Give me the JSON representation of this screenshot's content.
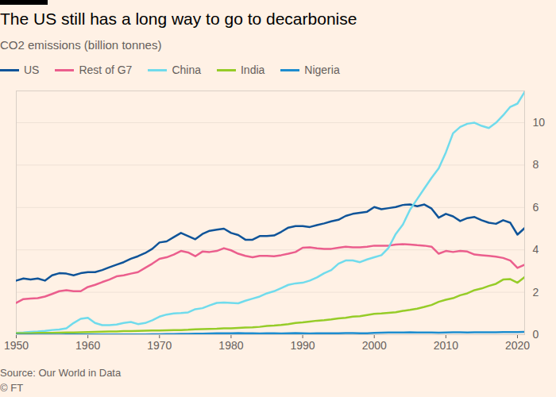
{
  "chart_data": {
    "type": "line",
    "title": "The US still has a long way to go to decarbonise",
    "subtitle": "CO2 emissions (billion tonnes)",
    "annotations": [
      "Source: Our World in Data",
      "© FT"
    ],
    "legend": "top",
    "grid": true,
    "x": [
      1950,
      1951,
      1952,
      1953,
      1954,
      1955,
      1956,
      1957,
      1958,
      1959,
      1960,
      1961,
      1962,
      1963,
      1964,
      1965,
      1966,
      1967,
      1968,
      1969,
      1970,
      1971,
      1972,
      1973,
      1974,
      1975,
      1976,
      1977,
      1978,
      1979,
      1980,
      1981,
      1982,
      1983,
      1984,
      1985,
      1986,
      1987,
      1988,
      1989,
      1990,
      1991,
      1992,
      1993,
      1994,
      1995,
      1996,
      1997,
      1998,
      1999,
      2000,
      2001,
      2002,
      2003,
      2004,
      2005,
      2006,
      2007,
      2008,
      2009,
      2010,
      2011,
      2012,
      2013,
      2014,
      2015,
      2016,
      2017,
      2018,
      2019,
      2020,
      2021
    ],
    "xlim": [
      1950,
      2021
    ],
    "xticks": [
      1950,
      1960,
      1970,
      1980,
      1990,
      2000,
      2010,
      2020
    ],
    "ylim": [
      0,
      11.5
    ],
    "yticks": [
      0,
      2,
      4,
      6,
      8,
      10
    ],
    "series": [
      {
        "name": "US",
        "color": "#0f5499",
        "values": [
          2.55,
          2.65,
          2.6,
          2.65,
          2.55,
          2.8,
          2.9,
          2.88,
          2.8,
          2.9,
          2.95,
          2.95,
          3.05,
          3.18,
          3.3,
          3.42,
          3.58,
          3.7,
          3.85,
          4.05,
          4.35,
          4.4,
          4.6,
          4.8,
          4.65,
          4.5,
          4.75,
          4.9,
          4.95,
          5.0,
          4.8,
          4.7,
          4.48,
          4.48,
          4.65,
          4.65,
          4.68,
          4.85,
          5.05,
          5.12,
          5.12,
          5.08,
          5.17,
          5.25,
          5.35,
          5.42,
          5.6,
          5.7,
          5.75,
          5.8,
          6.02,
          5.92,
          5.97,
          6.02,
          6.12,
          6.14,
          6.06,
          6.14,
          5.95,
          5.52,
          5.7,
          5.58,
          5.36,
          5.5,
          5.55,
          5.4,
          5.28,
          5.23,
          5.4,
          5.28,
          4.72,
          5.03
        ]
      },
      {
        "name": "Rest of G7",
        "color": "#eb5e8d",
        "values": [
          1.5,
          1.68,
          1.7,
          1.72,
          1.8,
          1.92,
          2.05,
          2.1,
          2.05,
          2.05,
          2.25,
          2.35,
          2.48,
          2.6,
          2.75,
          2.8,
          2.88,
          2.95,
          3.15,
          3.35,
          3.58,
          3.65,
          3.78,
          3.95,
          3.88,
          3.7,
          3.92,
          3.9,
          3.95,
          4.08,
          3.98,
          3.82,
          3.72,
          3.65,
          3.72,
          3.72,
          3.7,
          3.75,
          3.82,
          3.9,
          4.1,
          4.12,
          4.07,
          4.05,
          4.05,
          4.1,
          4.15,
          4.12,
          4.12,
          4.15,
          4.2,
          4.2,
          4.2,
          4.25,
          4.27,
          4.25,
          4.22,
          4.2,
          4.15,
          3.82,
          3.95,
          3.9,
          3.95,
          3.92,
          3.78,
          3.75,
          3.72,
          3.68,
          3.62,
          3.5,
          3.15,
          3.3
        ]
      },
      {
        "name": "China",
        "color": "#70dbec",
        "values": [
          0.08,
          0.1,
          0.13,
          0.15,
          0.18,
          0.22,
          0.24,
          0.3,
          0.55,
          0.75,
          0.8,
          0.55,
          0.45,
          0.45,
          0.48,
          0.55,
          0.6,
          0.5,
          0.55,
          0.68,
          0.85,
          0.95,
          1.0,
          1.02,
          1.05,
          1.2,
          1.25,
          1.38,
          1.5,
          1.52,
          1.5,
          1.48,
          1.6,
          1.7,
          1.8,
          1.95,
          2.05,
          2.2,
          2.35,
          2.42,
          2.45,
          2.55,
          2.7,
          2.9,
          3.05,
          3.35,
          3.5,
          3.5,
          3.42,
          3.55,
          3.65,
          3.75,
          4.1,
          4.75,
          5.2,
          5.9,
          6.4,
          6.9,
          7.4,
          7.85,
          8.6,
          9.5,
          9.8,
          9.95,
          10.0,
          9.85,
          9.75,
          10.0,
          10.35,
          10.75,
          10.9,
          11.45
        ]
      },
      {
        "name": "India",
        "color": "#96cc28",
        "values": [
          0.07,
          0.07,
          0.07,
          0.08,
          0.08,
          0.08,
          0.09,
          0.1,
          0.1,
          0.11,
          0.12,
          0.13,
          0.14,
          0.15,
          0.15,
          0.17,
          0.17,
          0.18,
          0.19,
          0.2,
          0.2,
          0.21,
          0.22,
          0.22,
          0.23,
          0.25,
          0.26,
          0.27,
          0.28,
          0.3,
          0.3,
          0.32,
          0.34,
          0.35,
          0.37,
          0.41,
          0.43,
          0.46,
          0.5,
          0.55,
          0.58,
          0.62,
          0.66,
          0.68,
          0.72,
          0.77,
          0.8,
          0.85,
          0.87,
          0.93,
          0.98,
          1.0,
          1.03,
          1.06,
          1.12,
          1.17,
          1.23,
          1.31,
          1.4,
          1.55,
          1.65,
          1.72,
          1.86,
          1.95,
          2.1,
          2.18,
          2.3,
          2.4,
          2.6,
          2.62,
          2.45,
          2.72
        ]
      },
      {
        "name": "Nigeria",
        "color": "#1e8dcf",
        "values": [
          0.002,
          0.002,
          0.003,
          0.003,
          0.003,
          0.004,
          0.004,
          0.005,
          0.005,
          0.006,
          0.007,
          0.008,
          0.008,
          0.009,
          0.01,
          0.012,
          0.013,
          0.012,
          0.01,
          0.015,
          0.02,
          0.025,
          0.03,
          0.035,
          0.04,
          0.045,
          0.05,
          0.06,
          0.065,
          0.07,
          0.07,
          0.075,
          0.07,
          0.065,
          0.06,
          0.065,
          0.068,
          0.06,
          0.07,
          0.075,
          0.065,
          0.06,
          0.065,
          0.07,
          0.07,
          0.07,
          0.075,
          0.075,
          0.07,
          0.07,
          0.08,
          0.09,
          0.1,
          0.1,
          0.105,
          0.11,
          0.105,
          0.105,
          0.1,
          0.09,
          0.1,
          0.11,
          0.11,
          0.105,
          0.11,
          0.11,
          0.11,
          0.115,
          0.12,
          0.125,
          0.125,
          0.13
        ]
      }
    ]
  }
}
